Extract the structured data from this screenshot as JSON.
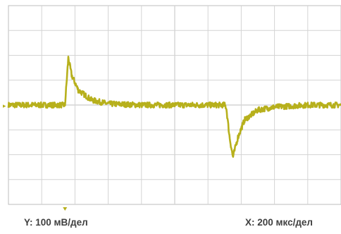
{
  "chart_data": {
    "type": "line",
    "x_unit": "мкс",
    "y_unit": "мВ",
    "xlim": [
      0,
      2000
    ],
    "ylim": [
      -400,
      400
    ],
    "divisions": {
      "x": 10,
      "y": 8
    },
    "grid": true,
    "trace_color": "#b7b01c",
    "grid_color": "#d4d4d4",
    "series": [
      {
        "x": [
          0,
          300,
          340,
          360,
          380,
          420,
          500,
          600,
          800,
          1000,
          1200,
          1300,
          1310,
          1330,
          1350,
          1380,
          1420,
          1500,
          1600,
          1800,
          2000
        ],
        "y": [
          0,
          0,
          0,
          190,
          120,
          60,
          20,
          5,
          0,
          0,
          0,
          0,
          -10,
          -130,
          -210,
          -130,
          -60,
          -20,
          -8,
          0,
          0
        ]
      }
    ],
    "trigger_marker_x": 340,
    "ylabel": "Y: 100 мВ/дел",
    "xlabel": "X: 200 мкс/дел"
  }
}
